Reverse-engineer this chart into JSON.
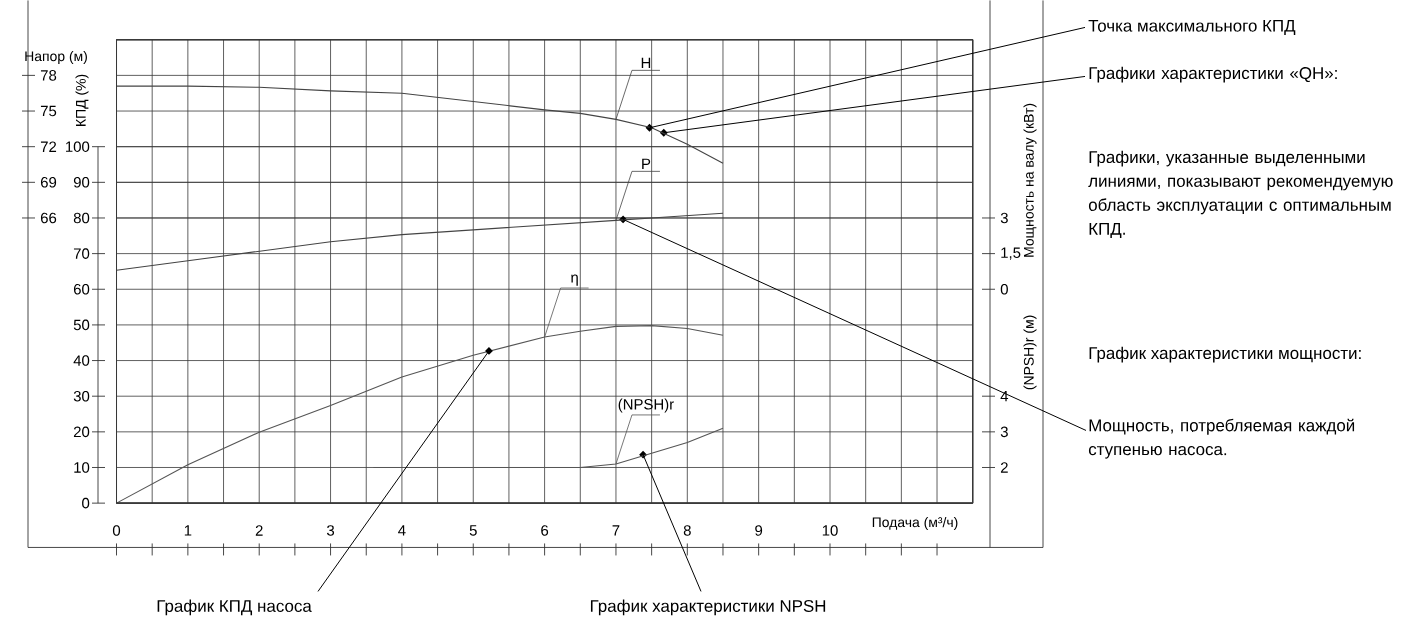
{
  "chart_data": [
    {
      "type": "line",
      "xlabel": "Подача (м³/ч)",
      "ylabel": "КПД (%)",
      "y2label": "Напор (м)",
      "y3label": "Мощность на валу (кВт)",
      "xlim": [
        0,
        12
      ],
      "xticks": [
        0,
        {
          "value": 0.5,
          "label": null
        },
        1,
        {
          "value": 1.5,
          "label": null
        },
        2,
        {
          "value": 2.5,
          "label": null
        },
        3,
        {
          "value": 3.5,
          "label": null
        },
        4,
        {
          "value": 4.5,
          "label": null
        },
        5,
        {
          "value": 5.5,
          "label": null
        },
        6,
        {
          "value": 6.5,
          "label": null
        },
        7,
        {
          "value": 7.5,
          "label": null
        },
        8,
        {
          "value": 8.5,
          "label": null
        },
        9,
        {
          "value": 9.5,
          "label": null
        },
        10,
        {
          "value": 10.5,
          "label": null
        },
        {
          "value": 11,
          "label": null
        },
        {
          "value": 11.5,
          "label": null
        }
      ],
      "ylim": [
        0,
        130
      ],
      "yticks": [
        0,
        10,
        20,
        30,
        40,
        50,
        60,
        70,
        80,
        90,
        100
      ],
      "y2lim": [
        42,
        81
      ],
      "y2ticks": [
        66,
        69,
        72,
        75,
        78
      ],
      "y3lim": [
        -9,
        10.5
      ],
      "y3ticks": [
        0,
        {
          "value": 1.5,
          "label": "1,5"
        },
        3
      ],
      "grid": true,
      "series": [
        {
          "name": "H",
          "axis": "y2",
          "color": "#444444",
          "x": [
            0,
            1,
            2,
            3,
            4,
            5,
            6,
            6.5,
            7,
            7.5,
            8,
            8.5
          ],
          "values": [
            77.1,
            77.1,
            77.0,
            76.7,
            76.5,
            75.8,
            75.1,
            74.8,
            74.3,
            73.6,
            72.2,
            70.6
          ]
        },
        {
          "name": "P",
          "axis": "y3",
          "color": "#444444",
          "x": [
            0,
            1,
            2,
            3,
            4,
            5,
            6,
            7,
            7.5,
            8.5
          ],
          "values": [
            0.8,
            1.2,
            1.6,
            2.0,
            2.3,
            2.5,
            2.7,
            2.9,
            3.0,
            3.2
          ]
        },
        {
          "name": "η",
          "color": "#555555",
          "x": [
            0,
            1,
            2,
            3,
            4,
            5,
            6,
            6.5,
            7,
            7.5,
            8,
            8.5
          ],
          "values": [
            0,
            10.8,
            19.9,
            27.4,
            35.4,
            41.5,
            46.6,
            48.2,
            49.6,
            49.8,
            49.0,
            47.1
          ]
        }
      ],
      "annotations": [
        {
          "text": "Точка максимального КПД",
          "x": 7.47,
          "y": 105.3
        },
        {
          "text": "Графики характеристики «QH»:",
          "x": 7.67,
          "y": 103.9
        },
        "Графики, указанные выделенными линиями, показывают рекомендуемую область эксплуатации с оптимальным КПД.",
        "График характеристики мощности:",
        {
          "text": "Мощность, потребляемая каждой ступенью насоса.",
          "x": 7.1,
          "y": 79.6
        },
        {
          "text": "График КПД насоса",
          "x": 5.22,
          "y": 42.7
        },
        {
          "text": "График характеристики NPSH",
          "x": 7.38,
          "y": 13.6
        }
      ]
    },
    {
      "type": "line",
      "ylabel": "(NPSH)r (м)",
      "xlim": [
        0,
        12
      ],
      "ylim": [
        1,
        14
      ],
      "yticks": [
        2,
        3,
        4
      ],
      "tick_labels": "y",
      "series": [
        {
          "name": "(NPSH)r",
          "color": "#555555",
          "x": [
            3.6,
            5,
            6,
            6.5,
            7,
            7.5,
            8,
            8.5
          ],
          "values": [
            2.0,
            2.0,
            2.0,
            2.0,
            2.1,
            2.4,
            2.7,
            3.1
          ]
        }
      ]
    }
  ]
}
